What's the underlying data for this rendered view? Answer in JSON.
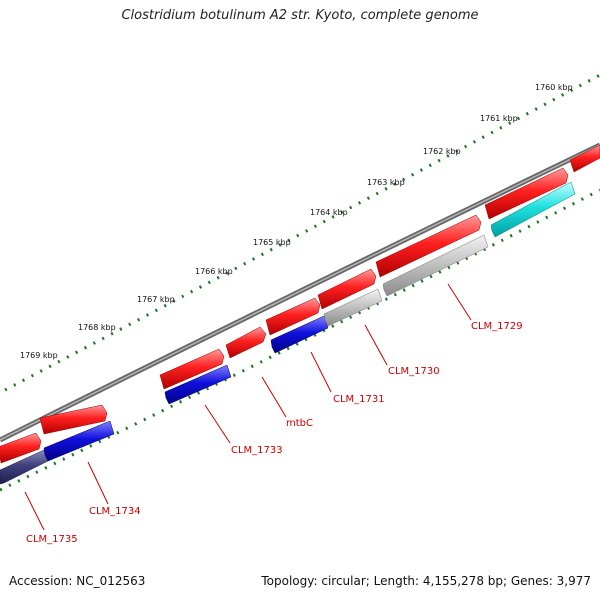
{
  "title": "Clostridium botulinum A2 str. Kyoto, complete genome",
  "footer": {
    "accession": "Accession: NC_012563",
    "topology": "Topology: circular; Length: 4,155,278 bp; Genes: 3,977"
  },
  "scale": {
    "unit": "kbp",
    "ticks": [
      "1760 kbp",
      "1761 kbp",
      "1762 kbp",
      "1763 kbp",
      "1764 kbp",
      "1765 kbp",
      "1766 kbp",
      "1767 kbp",
      "1768 kbp",
      "1769 kbp"
    ]
  },
  "colors": {
    "forward_cds": "#ee1111",
    "reverse_cds": "#1111cc",
    "reverse_cds_dark": "#3a3a80",
    "reverse_cds_gray": "#bbbbbb",
    "reverse_cds_cyan": "#22dddd",
    "backbone": "#777777",
    "tick_marks": "#1a7a1a",
    "label": "#cc0000"
  },
  "gene_labels": [
    "CLM_1729",
    "CLM_1730",
    "CLM_1731",
    "mtbC",
    "CLM_1733",
    "CLM_1734",
    "CLM_1735"
  ]
}
